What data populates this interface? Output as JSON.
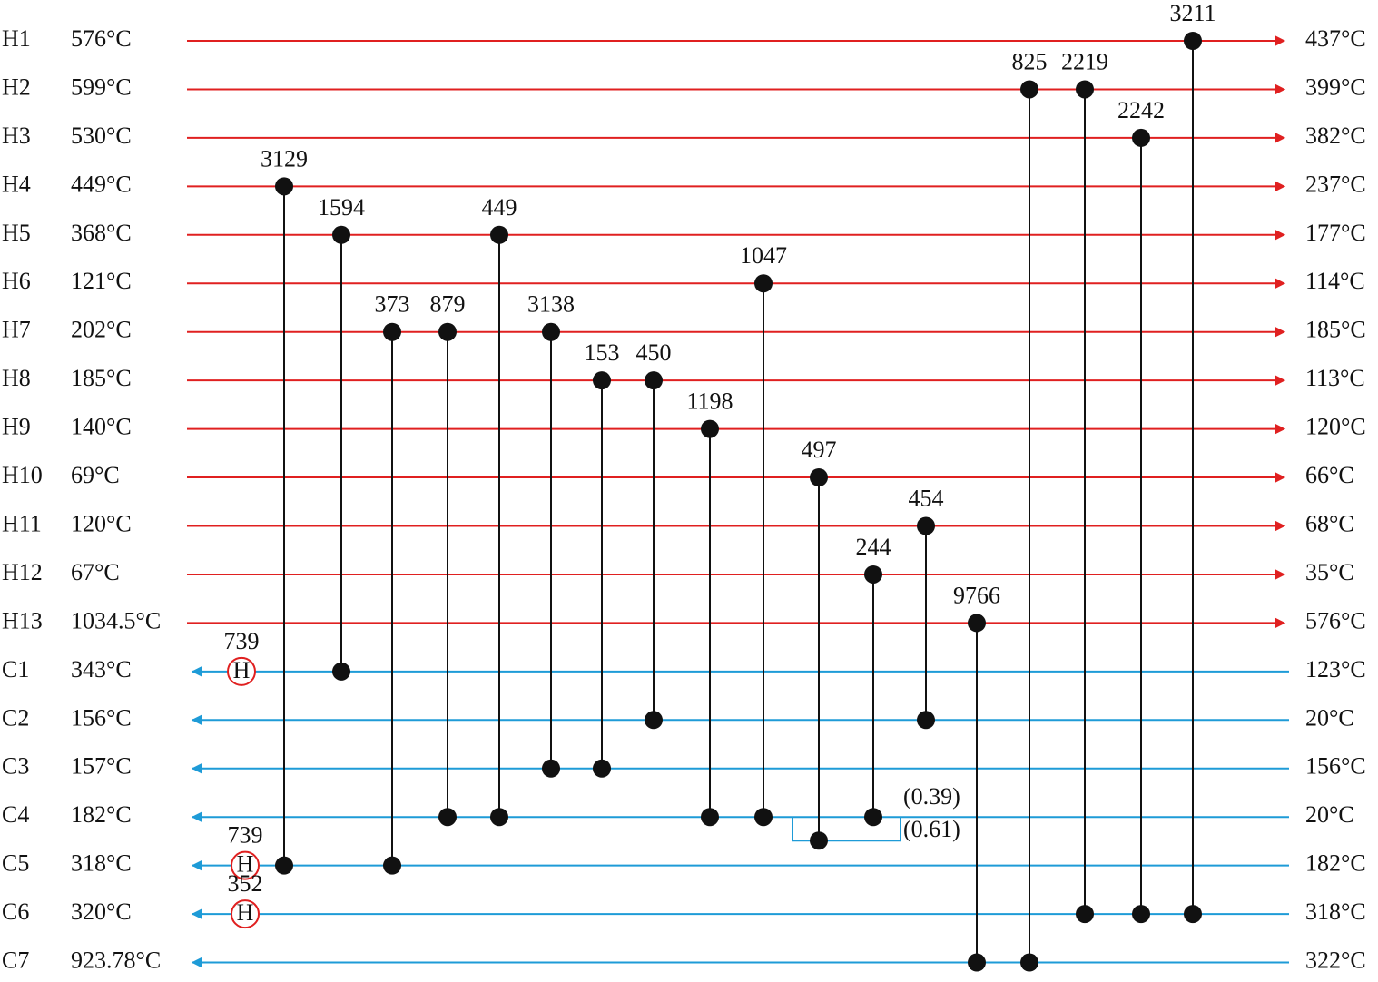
{
  "hot_streams": [
    {
      "name": "H1",
      "inlet": "576°C",
      "outlet": "437°C"
    },
    {
      "name": "H2",
      "inlet": "599°C",
      "outlet": "399°C"
    },
    {
      "name": "H3",
      "inlet": "530°C",
      "outlet": "382°C"
    },
    {
      "name": "H4",
      "inlet": "449°C",
      "outlet": "237°C"
    },
    {
      "name": "H5",
      "inlet": "368°C",
      "outlet": "177°C"
    },
    {
      "name": "H6",
      "inlet": "121°C",
      "outlet": "114°C"
    },
    {
      "name": "H7",
      "inlet": "202°C",
      "outlet": "185°C"
    },
    {
      "name": "H8",
      "inlet": "185°C",
      "outlet": "113°C"
    },
    {
      "name": "H9",
      "inlet": "140°C",
      "outlet": "120°C"
    },
    {
      "name": "H10",
      "inlet": "69°C",
      "outlet": "66°C"
    },
    {
      "name": "H11",
      "inlet": "120°C",
      "outlet": "68°C"
    },
    {
      "name": "H12",
      "inlet": "67°C",
      "outlet": "35°C"
    },
    {
      "name": "H13",
      "inlet": "1034.5°C",
      "outlet": "576°C"
    }
  ],
  "cold_streams": [
    {
      "name": "C1",
      "outlet": "343°C",
      "inlet": "123°C"
    },
    {
      "name": "C2",
      "outlet": "156°C",
      "inlet": "20°C"
    },
    {
      "name": "C3",
      "outlet": "157°C",
      "inlet": "156°C"
    },
    {
      "name": "C4",
      "outlet": "182°C",
      "inlet": "20°C"
    },
    {
      "name": "C5",
      "outlet": "318°C",
      "inlet": "182°C"
    },
    {
      "name": "C6",
      "outlet": "320°C",
      "inlet": "318°C"
    },
    {
      "name": "C7",
      "outlet": "923.78°C",
      "inlet": "322°C"
    }
  ],
  "exchangers": [
    {
      "label": "3129",
      "hot": "H4",
      "cold": "C5"
    },
    {
      "label": "1594",
      "hot": "H5",
      "cold": "C1"
    },
    {
      "label": "373",
      "hot": "H7",
      "cold": "C5"
    },
    {
      "label": "879",
      "hot": "H7",
      "cold": "C4"
    },
    {
      "label": "449",
      "hot": "H5",
      "cold": "C4"
    },
    {
      "label": "3138",
      "hot": "H7",
      "cold": "C3"
    },
    {
      "label": "153",
      "hot": "H8",
      "cold": "C3"
    },
    {
      "label": "450",
      "hot": "H8",
      "cold": "C2"
    },
    {
      "label": "1198",
      "hot": "H9",
      "cold": "C4"
    },
    {
      "label": "1047",
      "hot": "H6",
      "cold": "C4"
    },
    {
      "label": "497",
      "hot": "H10",
      "cold": "C4"
    },
    {
      "label": "244",
      "hot": "H12",
      "cold": "C4"
    },
    {
      "label": "454",
      "hot": "H11",
      "cold": "C2"
    },
    {
      "label": "9766",
      "hot": "H13",
      "cold": "C7"
    },
    {
      "label": "825",
      "hot": "H2",
      "cold": "C7"
    },
    {
      "label": "2219",
      "hot": "H2",
      "cold": "C6"
    },
    {
      "label": "2242",
      "hot": "H3",
      "cold": "C6"
    },
    {
      "label": "3211",
      "hot": "H1",
      "cold": "C6"
    }
  ],
  "heaters": [
    {
      "label": "739",
      "stream": "C1",
      "symbol": "H"
    },
    {
      "label": "739",
      "stream": "C5",
      "symbol": "H"
    },
    {
      "label": "352",
      "stream": "C6",
      "symbol": "H"
    }
  ],
  "split": {
    "stream": "C4",
    "fractions": [
      "(0.39)",
      "(0.61)"
    ]
  }
}
